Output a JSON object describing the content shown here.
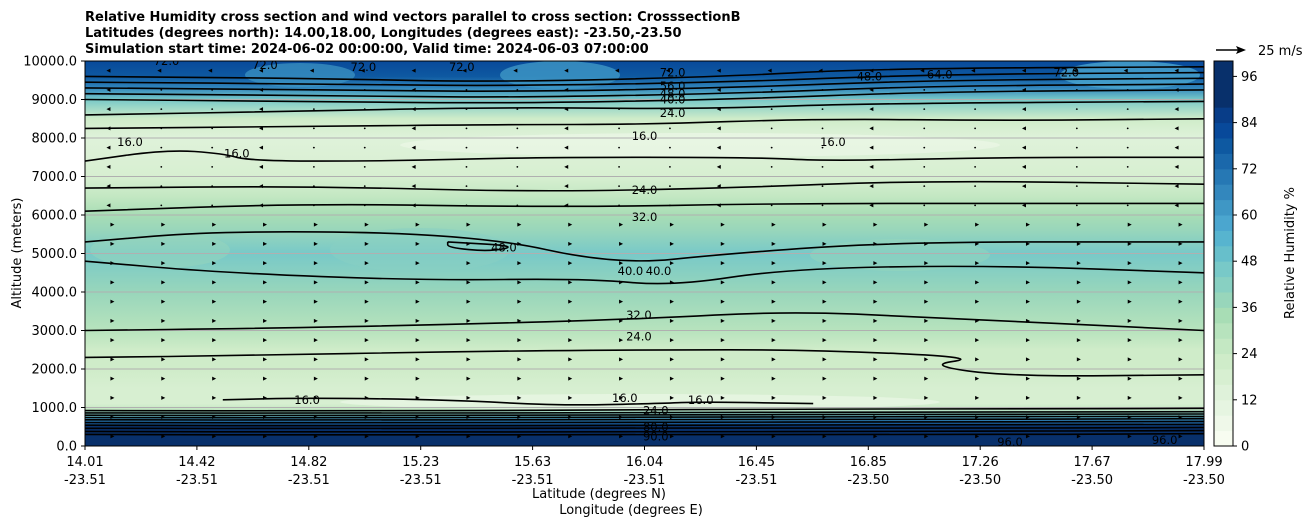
{
  "chart_data": {
    "type": "contour",
    "title_lines": [
      "Relative Humidity cross section and wind vectors parallel to cross section: CrosssectionB",
      "Latitudes (degrees north): 14.00,18.00, Longitudes (degrees east): -23.50,-23.50",
      "Simulation start time: 2024-06-02 00:00:00, Valid time: 2024-06-03 07:00:00"
    ],
    "xlabel_lines": [
      "Latitude (degrees N)",
      "Longitude (degrees E)"
    ],
    "ylabel": "Altitude (meters)",
    "xlim": [
      14.01,
      17.99
    ],
    "ylim": [
      0,
      10000
    ],
    "x_ticks": [
      {
        "lat": "14.01",
        "lon": "-23.51"
      },
      {
        "lat": "14.42",
        "lon": "-23.51"
      },
      {
        "lat": "14.82",
        "lon": "-23.51"
      },
      {
        "lat": "15.23",
        "lon": "-23.51"
      },
      {
        "lat": "15.63",
        "lon": "-23.51"
      },
      {
        "lat": "16.04",
        "lon": "-23.51"
      },
      {
        "lat": "16.45",
        "lon": "-23.51"
      },
      {
        "lat": "16.85",
        "lon": "-23.50"
      },
      {
        "lat": "17.26",
        "lon": "-23.50"
      },
      {
        "lat": "17.67",
        "lon": "-23.50"
      },
      {
        "lat": "17.99",
        "lon": "-23.50"
      }
    ],
    "y_ticks": [
      "0.0",
      "1000.0",
      "2000.0",
      "3000.0",
      "4000.0",
      "5000.0",
      "6000.0",
      "7000.0",
      "8000.0",
      "9000.0",
      "10000.0"
    ],
    "y_tick_values": [
      0,
      1000,
      2000,
      3000,
      4000,
      5000,
      6000,
      7000,
      8000,
      9000,
      10000
    ],
    "colorbar": {
      "label": "Relative Humidity %",
      "ticks": [
        "0",
        "12",
        "24",
        "36",
        "48",
        "60",
        "72",
        "84",
        "96"
      ],
      "tick_values": [
        0,
        12,
        24,
        36,
        48,
        60,
        72,
        84,
        96
      ],
      "range": [
        0,
        100
      ],
      "levels_step": 4,
      "colors": [
        "#f7fcf0",
        "#eff8e9",
        "#e6f5e1",
        "#dff2da",
        "#d7efd1",
        "#cfecc9",
        "#c4e8c3",
        "#b7e3bd",
        "#a8ddb5",
        "#98d6bb",
        "#88d0c2",
        "#78c9c8",
        "#67bfcb",
        "#57b4cf",
        "#4ba6cf",
        "#3f97c5",
        "#3387bd",
        "#2678b4",
        "#1a68ab",
        "#0e59a1",
        "#08499a",
        "#083d88",
        "#08306b"
      ]
    },
    "wind_key": "25 m/s",
    "rh_profile": [
      {
        "alt": 0,
        "rh": 97
      },
      {
        "alt": 300,
        "rh": 96
      },
      {
        "alt": 500,
        "rh": 90
      },
      {
        "alt": 650,
        "rh": 70
      },
      {
        "alt": 800,
        "rh": 45
      },
      {
        "alt": 950,
        "rh": 24
      },
      {
        "alt": 1100,
        "rh": 16
      },
      {
        "alt": 1500,
        "rh": 16
      },
      {
        "alt": 2000,
        "rh": 20
      },
      {
        "alt": 2500,
        "rh": 23
      },
      {
        "alt": 3000,
        "rh": 31
      },
      {
        "alt": 4000,
        "rh": 38
      },
      {
        "alt": 5000,
        "rh": 45
      },
      {
        "alt": 5600,
        "rh": 38
      },
      {
        "alt": 6000,
        "rh": 32
      },
      {
        "alt": 6500,
        "rh": 25
      },
      {
        "alt": 7000,
        "rh": 18
      },
      {
        "alt": 8000,
        "rh": 15
      },
      {
        "alt": 8500,
        "rh": 22
      },
      {
        "alt": 9000,
        "rh": 45
      },
      {
        "alt": 9300,
        "rh": 66
      },
      {
        "alt": 9600,
        "rh": 76
      },
      {
        "alt": 10000,
        "rh": 80
      }
    ],
    "contour_lines": [
      {
        "level": 96,
        "points": [
          [
            14.01,
            300
          ],
          [
            15.0,
            280
          ],
          [
            16.0,
            300
          ],
          [
            17.0,
            290
          ],
          [
            17.99,
            320
          ]
        ]
      },
      {
        "level": 90,
        "points": [
          [
            14.01,
            380
          ],
          [
            15.0,
            360
          ],
          [
            16.0,
            370
          ],
          [
            17.0,
            380
          ],
          [
            17.99,
            400
          ]
        ]
      },
      {
        "level": 80,
        "points": [
          [
            14.01,
            460
          ],
          [
            15.0,
            450
          ],
          [
            16.0,
            470
          ],
          [
            17.0,
            460
          ],
          [
            17.99,
            480
          ]
        ]
      },
      {
        "level": 72,
        "points": [
          [
            14.01,
            540
          ],
          [
            15.0,
            520
          ],
          [
            16.0,
            540
          ],
          [
            17.0,
            550
          ],
          [
            17.99,
            560
          ]
        ]
      },
      {
        "level": 64,
        "points": [
          [
            14.01,
            610
          ],
          [
            15.0,
            600
          ],
          [
            16.0,
            620
          ],
          [
            17.0,
            620
          ],
          [
            17.99,
            640
          ]
        ]
      },
      {
        "level": 56,
        "points": [
          [
            14.01,
            680
          ],
          [
            15.0,
            670
          ],
          [
            16.0,
            690
          ],
          [
            17.0,
            690
          ],
          [
            17.99,
            710
          ]
        ]
      },
      {
        "level": 48,
        "points": [
          [
            14.01,
            740
          ],
          [
            15.0,
            730
          ],
          [
            16.0,
            750
          ],
          [
            17.0,
            760
          ],
          [
            17.99,
            770
          ]
        ]
      },
      {
        "level": 40,
        "points": [
          [
            14.01,
            800
          ],
          [
            15.0,
            790
          ],
          [
            16.0,
            810
          ],
          [
            17.0,
            820
          ],
          [
            17.99,
            830
          ]
        ]
      },
      {
        "level": 32,
        "points": [
          [
            14.01,
            860
          ],
          [
            15.0,
            850
          ],
          [
            16.0,
            870
          ],
          [
            17.0,
            880
          ],
          [
            17.99,
            890
          ]
        ]
      },
      {
        "level": 24,
        "points": [
          [
            14.01,
            920
          ],
          [
            15.0,
            910
          ],
          [
            15.8,
            930
          ],
          [
            16.5,
            960
          ],
          [
            17.2,
            960
          ],
          [
            17.99,
            980
          ]
        ]
      },
      {
        "level": 16,
        "points": [
          [
            14.5,
            1200
          ],
          [
            14.8,
            1250
          ],
          [
            15.3,
            1200
          ],
          [
            15.7,
            1050
          ],
          [
            16.04,
            1100
          ],
          [
            16.2,
            1150
          ],
          [
            16.6,
            1100
          ]
        ]
      },
      {
        "level": 24,
        "points": [
          [
            14.01,
            2300
          ],
          [
            14.6,
            2350
          ],
          [
            15.3,
            2450
          ],
          [
            16.0,
            2500
          ],
          [
            16.6,
            2500
          ],
          [
            17.2,
            2300
          ],
          [
            17.0,
            2100
          ],
          [
            17.3,
            1800
          ],
          [
            17.99,
            1850
          ]
        ]
      },
      {
        "level": 32,
        "points": [
          [
            14.01,
            3000
          ],
          [
            14.6,
            3050
          ],
          [
            15.3,
            3150
          ],
          [
            16.0,
            3300
          ],
          [
            16.5,
            3500
          ],
          [
            17.0,
            3350
          ],
          [
            17.99,
            3000
          ]
        ]
      },
      {
        "level": 40,
        "points": [
          [
            14.01,
            4800
          ],
          [
            14.5,
            4500
          ],
          [
            15.2,
            4300
          ],
          [
            15.8,
            4350
          ],
          [
            16.1,
            4150
          ],
          [
            16.5,
            4600
          ],
          [
            17.2,
            4700
          ],
          [
            17.99,
            4500
          ]
        ]
      },
      {
        "level": 48,
        "points": [
          [
            15.3,
            5300
          ],
          [
            15.55,
            5200
          ],
          [
            15.45,
            5050
          ],
          [
            15.3,
            5150
          ],
          [
            15.3,
            5300
          ]
        ]
      },
      {
        "level": 40,
        "points": [
          [
            14.01,
            5300
          ],
          [
            14.5,
            5600
          ],
          [
            15.4,
            5500
          ],
          [
            15.9,
            4700
          ],
          [
            16.3,
            5000
          ],
          [
            16.9,
            5300
          ],
          [
            17.99,
            5300
          ]
        ]
      },
      {
        "level": 32,
        "points": [
          [
            14.01,
            6100
          ],
          [
            14.8,
            6300
          ],
          [
            15.7,
            6200
          ],
          [
            16.5,
            6300
          ],
          [
            17.3,
            6300
          ],
          [
            17.99,
            6300
          ]
        ]
      },
      {
        "level": 24,
        "points": [
          [
            14.01,
            6700
          ],
          [
            14.8,
            6750
          ],
          [
            15.6,
            6600
          ],
          [
            16.3,
            6700
          ],
          [
            17.0,
            6900
          ],
          [
            17.99,
            6800
          ]
        ]
      },
      {
        "level": 16,
        "points": [
          [
            14.01,
            7400
          ],
          [
            14.3,
            7700
          ],
          [
            14.5,
            7600
          ],
          [
            14.6,
            7400
          ],
          [
            15.1,
            7400
          ],
          [
            15.6,
            7500
          ],
          [
            16.4,
            7500
          ],
          [
            16.65,
            7400
          ],
          [
            17.3,
            7500
          ],
          [
            17.99,
            7500
          ]
        ]
      },
      {
        "level": 24,
        "points": [
          [
            14.01,
            8250
          ],
          [
            14.8,
            8300
          ],
          [
            15.5,
            8350
          ],
          [
            16.0,
            8350
          ],
          [
            16.6,
            8500
          ],
          [
            17.3,
            8450
          ],
          [
            17.99,
            8500
          ]
        ]
      },
      {
        "level": 32,
        "points": [
          [
            14.01,
            8600
          ],
          [
            14.8,
            8700
          ],
          [
            15.5,
            8800
          ],
          [
            16.2,
            8750
          ],
          [
            16.8,
            8900
          ],
          [
            17.99,
            8950
          ]
        ]
      },
      {
        "level": 40,
        "points": [
          [
            14.01,
            9000
          ],
          [
            14.8,
            8950
          ],
          [
            15.5,
            8900
          ],
          [
            16.3,
            9000
          ],
          [
            17.0,
            9200
          ],
          [
            17.99,
            9250
          ]
        ]
      },
      {
        "level": 48,
        "points": [
          [
            14.01,
            9150
          ],
          [
            14.9,
            9100
          ],
          [
            15.5,
            9050
          ],
          [
            16.3,
            9150
          ],
          [
            17.0,
            9350
          ],
          [
            17.99,
            9400
          ]
        ]
      },
      {
        "level": 56,
        "points": [
          [
            14.01,
            9300
          ],
          [
            14.9,
            9250
          ],
          [
            15.5,
            9200
          ],
          [
            16.3,
            9300
          ],
          [
            17.0,
            9500
          ],
          [
            17.99,
            9550
          ]
        ]
      },
      {
        "level": 64,
        "points": [
          [
            14.01,
            9450
          ],
          [
            14.9,
            9400
          ],
          [
            15.5,
            9350
          ],
          [
            16.3,
            9450
          ],
          [
            17.0,
            9650
          ],
          [
            17.99,
            9700
          ]
        ]
      },
      {
        "level": 72,
        "points": [
          [
            14.01,
            9600
          ],
          [
            14.8,
            9550
          ],
          [
            15.5,
            9450
          ],
          [
            16.3,
            9600
          ],
          [
            16.8,
            9800
          ],
          [
            17.99,
            9850
          ]
        ]
      }
    ],
    "contour_labels": [
      {
        "text": "72.0",
        "x": 16.1,
        "y": 9700
      },
      {
        "text": "56.0",
        "x": 16.1,
        "y": 9350
      },
      {
        "text": "48.0",
        "x": 16.1,
        "y": 9150
      },
      {
        "text": "40.0",
        "x": 16.1,
        "y": 9000
      },
      {
        "text": "24.0",
        "x": 16.1,
        "y": 8650
      },
      {
        "text": "16.0",
        "x": 16.0,
        "y": 8050
      },
      {
        "text": "16.0",
        "x": 14.17,
        "y": 7900
      },
      {
        "text": "16.0",
        "x": 14.55,
        "y": 7600
      },
      {
        "text": "16.0",
        "x": 16.67,
        "y": 7900
      },
      {
        "text": "24.0",
        "x": 16.0,
        "y": 6650
      },
      {
        "text": "32.0",
        "x": 16.0,
        "y": 5950
      },
      {
        "text": "48.0",
        "x": 15.5,
        "y": 5150
      },
      {
        "text": "40.0",
        "x": 15.95,
        "y": 4550
      },
      {
        "text": "40.0",
        "x": 16.05,
        "y": 4550
      },
      {
        "text": "32.0",
        "x": 15.98,
        "y": 3400
      },
      {
        "text": "24.0",
        "x": 15.98,
        "y": 2850
      },
      {
        "text": "16.0",
        "x": 14.8,
        "y": 1200
      },
      {
        "text": "16.0",
        "x": 15.93,
        "y": 1250
      },
      {
        "text": "16.0",
        "x": 16.2,
        "y": 1200
      },
      {
        "text": "24.0",
        "x": 16.04,
        "y": 920
      },
      {
        "text": "80.0",
        "x": 16.04,
        "y": 500
      },
      {
        "text": "90.0",
        "x": 16.04,
        "y": 250
      },
      {
        "text": "72.0",
        "x": 14.3,
        "y": 10000
      },
      {
        "text": "72.0",
        "x": 14.65,
        "y": 9900
      },
      {
        "text": "72.0",
        "x": 15.0,
        "y": 9850
      },
      {
        "text": "72.0",
        "x": 15.35,
        "y": 9850
      },
      {
        "text": "48.0",
        "x": 16.8,
        "y": 9600
      },
      {
        "text": "64.0",
        "x": 17.05,
        "y": 9650
      },
      {
        "text": "72.0",
        "x": 17.5,
        "y": 9700
      },
      {
        "text": "96.0",
        "x": 17.3,
        "y": 100
      },
      {
        "text": "96.0",
        "x": 17.85,
        "y": 150
      }
    ]
  }
}
